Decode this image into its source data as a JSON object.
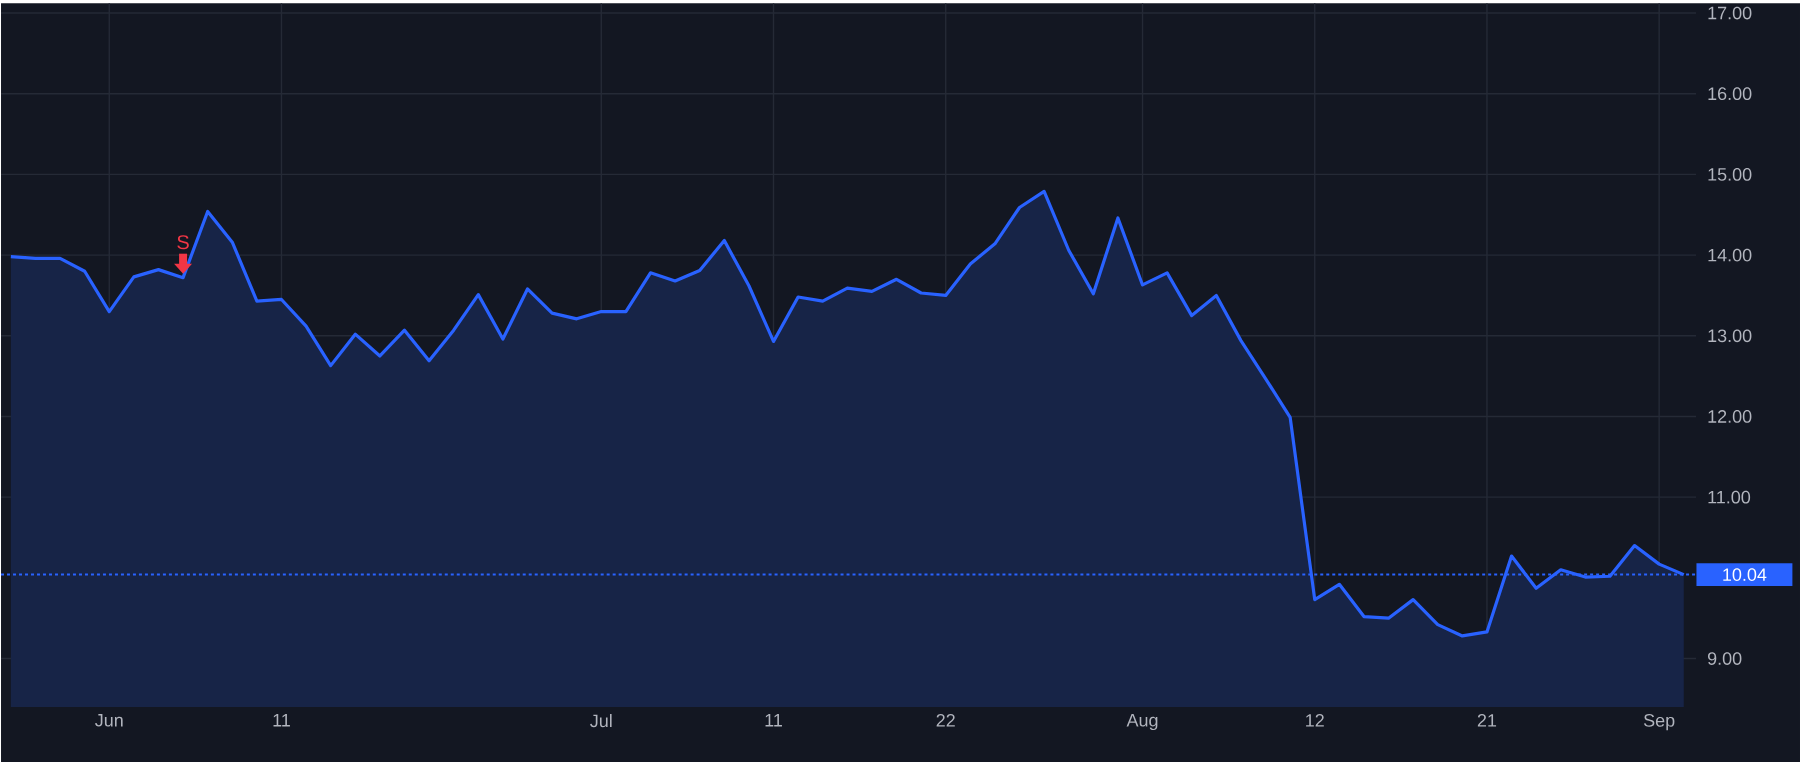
{
  "chart_data": {
    "type": "area",
    "categories": [
      null,
      null,
      null,
      null,
      "Jun",
      null,
      null,
      null,
      null,
      null,
      null,
      "11",
      null,
      null,
      null,
      null,
      null,
      null,
      null,
      null,
      null,
      null,
      null,
      null,
      "Jul",
      null,
      null,
      null,
      null,
      null,
      null,
      "11",
      null,
      null,
      null,
      null,
      null,
      null,
      "22",
      null,
      null,
      null,
      null,
      null,
      null,
      null,
      "Aug",
      null,
      null,
      null,
      null,
      null,
      null,
      "12",
      null,
      null,
      null,
      null,
      null,
      null,
      "21",
      null,
      null,
      null,
      null,
      null,
      null,
      "Sep",
      null
    ],
    "series": [
      {
        "color": "#2962ff",
        "values": [
          13.98,
          13.96,
          13.96,
          13.8,
          13.3,
          13.73,
          13.82,
          13.72,
          14.54,
          14.16,
          13.43,
          13.45,
          13.12,
          12.63,
          13.02,
          12.75,
          13.07,
          12.69,
          13.07,
          13.51,
          12.96,
          13.58,
          13.28,
          13.21,
          13.3,
          13.3,
          13.78,
          13.68,
          13.81,
          14.18,
          13.62,
          12.93,
          13.48,
          13.43,
          13.59,
          13.55,
          13.7,
          13.53,
          13.5,
          13.89,
          14.14,
          14.59,
          14.79,
          14.06,
          13.52,
          14.46,
          13.63,
          13.78,
          13.25,
          13.5,
          12.94,
          12.47,
          11.99,
          9.73,
          9.92,
          9.52,
          9.5,
          9.73,
          9.42,
          9.28,
          9.33,
          10.27,
          9.87,
          10.1,
          10.01,
          10.02,
          10.4,
          10.17,
          10.04
        ]
      }
    ],
    "ylim": [
      8.4,
      17.12
    ],
    "yticks": [
      {
        "value": 9,
        "label": "9.00"
      },
      {
        "value": 11,
        "label": "11.00"
      },
      {
        "value": 12,
        "label": "12.00"
      },
      {
        "value": 13,
        "label": "13.00"
      },
      {
        "value": 14,
        "label": "14.00"
      },
      {
        "value": 15,
        "label": "15.00"
      },
      {
        "value": 16,
        "label": "16.00"
      },
      {
        "value": 17,
        "label": "17.00"
      }
    ],
    "grid": true,
    "ref_lines": [
      {
        "axis": "y",
        "value": 10.04,
        "label": "10.04",
        "color": "#2962ff",
        "line_style": "dotted"
      }
    ],
    "annotations": [
      {
        "text": "S",
        "y": 13.72
      }
    ]
  }
}
